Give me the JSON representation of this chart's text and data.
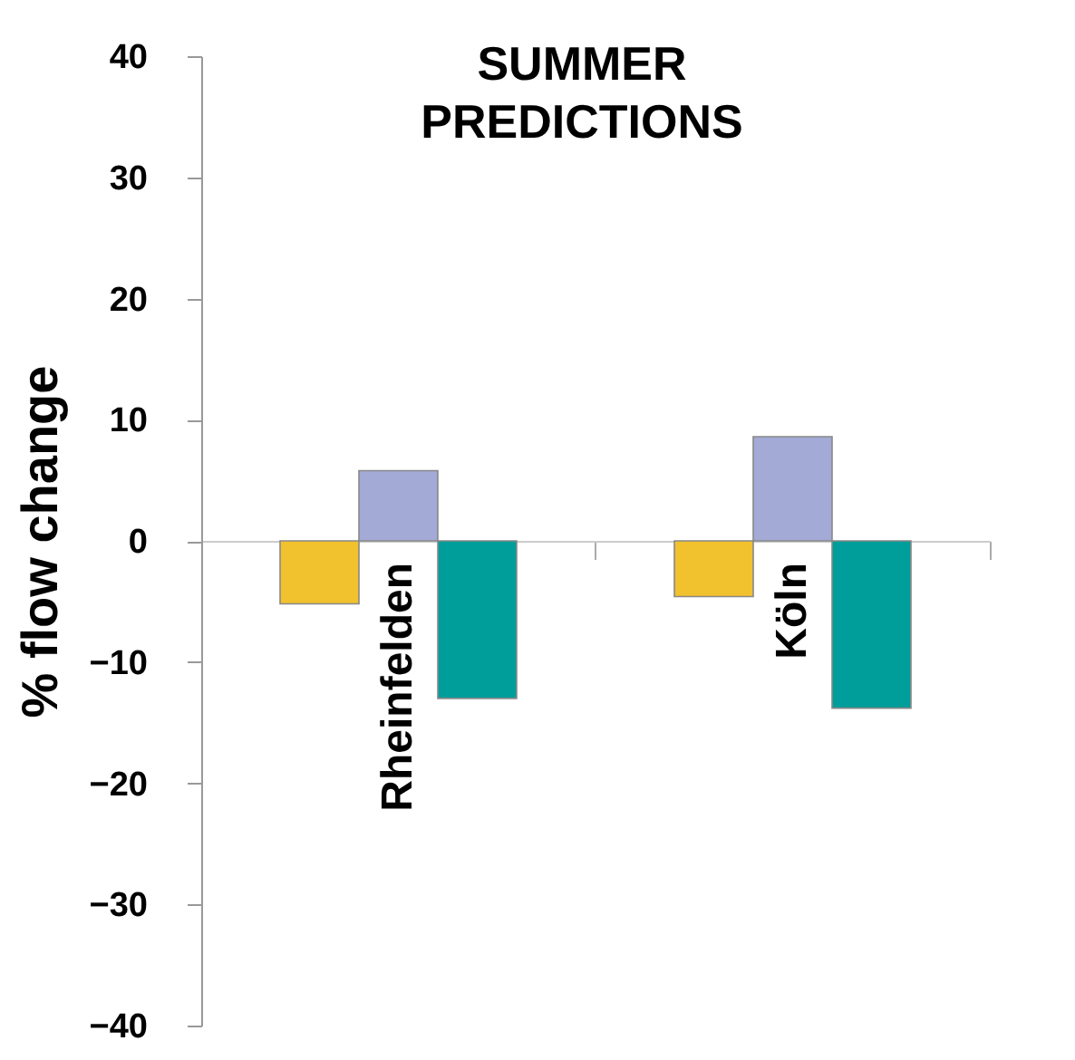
{
  "chart_data": {
    "type": "bar",
    "title": "SUMMER\nPREDICTIONS",
    "ylabel": "% flow change",
    "categories": [
      "Rheinfelden",
      "Köln"
    ],
    "series": [
      {
        "color": "#f2c12e",
        "values": [
          -5.2,
          -4.6
        ]
      },
      {
        "color": "#a3aad6",
        "values": [
          5.8,
          8.6
        ]
      },
      {
        "color": "#009e9a",
        "values": [
          -13,
          -13.8
        ]
      }
    ],
    "ylim": [
      -40,
      40
    ],
    "yticks": [
      -40,
      -30,
      -20,
      -10,
      0,
      10,
      20,
      30,
      40
    ],
    "grid": false,
    "legend": false
  }
}
